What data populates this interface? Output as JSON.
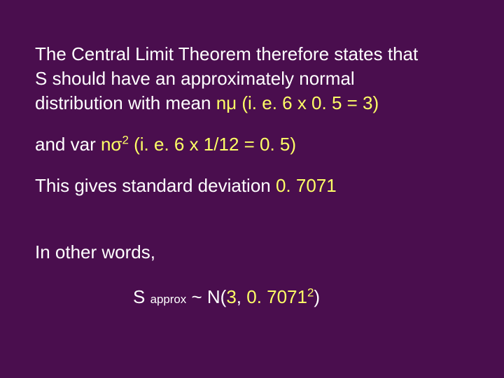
{
  "slide": {
    "background_color": "#4a0e4e",
    "text_color": "#ffffff",
    "highlight_color": "#ffff66",
    "font_size_pt": 26,
    "p1_a": "The Central Limit Theorem therefore states that S should have an approximately normal distribution with mean ",
    "p1_b": "nμ (i. e. 6 x 0. 5 = 3)",
    "p2_a": "and var ",
    "p2_b": "nσ",
    "p2_sup": "2",
    "p2_c": " (i. e. 6 x 1/12 = 0. 5)",
    "p3_a": "This gives standard deviation ",
    "p3_b": "0. 7071",
    "p4": "In other words,",
    "p5_a": "S ",
    "p5_sub": "approx",
    "p5_b": " ~ N(",
    "p5_c": "3",
    "p5_d": ", ",
    "p5_e": "0. 7071",
    "p5_sup": "2",
    "p5_f": ")"
  }
}
